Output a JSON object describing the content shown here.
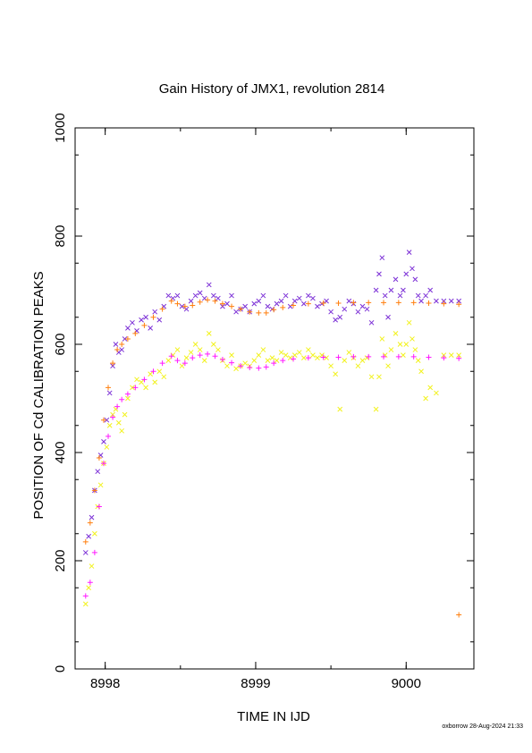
{
  "chart_data": {
    "type": "scatter",
    "title": "Gain History of JMX1, revolution 2814",
    "xlabel": "TIME IN IJD",
    "ylabel": "POSITION OF Cd CALIBRATION PEAKS",
    "xlim": [
      8997.8,
      9000.45
    ],
    "ylim": [
      0,
      1000
    ],
    "xticks": [
      8998,
      8999,
      9000
    ],
    "yticks": [
      0,
      200,
      400,
      600,
      800,
      1000
    ],
    "grid": false,
    "series": [
      {
        "marker": "x",
        "color": "#7b2fd6",
        "x": [
          8997.87,
          8997.89,
          8997.91,
          8997.93,
          8997.95,
          8997.97,
          8997.99,
          8998.01,
          8998.03,
          8998.05,
          8998.07,
          8998.09,
          8998.11,
          8998.13,
          8998.15,
          8998.18,
          8998.21,
          8998.24,
          8998.27,
          8998.3,
          8998.33,
          8998.36,
          8998.39,
          8998.42,
          8998.45,
          8998.48,
          8998.51,
          8998.54,
          8998.57,
          8998.6,
          8998.63,
          8998.66,
          8998.69,
          8998.72,
          8998.75,
          8998.78,
          8998.81,
          8998.84,
          8998.87,
          8998.9,
          8998.93,
          8998.96,
          8998.99,
          8999.02,
          8999.05,
          8999.08,
          8999.11,
          8999.14,
          8999.17,
          8999.2,
          8999.23,
          8999.26,
          8999.29,
          8999.32,
          8999.35,
          8999.38,
          8999.41,
          8999.44,
          8999.47,
          8999.5,
          8999.53,
          8999.56,
          8999.59,
          8999.62,
          8999.65,
          8999.68,
          8999.71,
          8999.74,
          8999.77,
          8999.8,
          8999.82,
          8999.84,
          8999.86,
          8999.88,
          8999.9,
          8999.93,
          8999.96,
          8999.98,
          9000.0,
          9000.02,
          9000.04,
          9000.06,
          9000.08,
          9000.1,
          9000.13,
          9000.16,
          9000.2,
          9000.25,
          9000.3,
          9000.35
        ],
        "y": [
          215,
          245,
          280,
          330,
          365,
          395,
          420,
          460,
          510,
          560,
          600,
          585,
          590,
          610,
          630,
          640,
          625,
          645,
          650,
          630,
          660,
          645,
          670,
          690,
          685,
          690,
          670,
          665,
          680,
          690,
          695,
          685,
          710,
          690,
          685,
          670,
          675,
          690,
          660,
          665,
          670,
          660,
          675,
          680,
          690,
          670,
          665,
          675,
          680,
          690,
          670,
          680,
          685,
          675,
          690,
          685,
          670,
          675,
          680,
          660,
          645,
          650,
          665,
          680,
          675,
          660,
          670,
          665,
          640,
          700,
          730,
          760,
          690,
          650,
          700,
          720,
          690,
          700,
          730,
          770,
          740,
          720,
          690,
          680,
          690,
          700,
          680,
          680,
          680,
          680
        ]
      },
      {
        "marker": "x",
        "color": "#f2f21d",
        "x": [
          8997.87,
          8997.89,
          8997.91,
          8997.93,
          8997.95,
          8997.97,
          8997.99,
          8998.01,
          8998.03,
          8998.05,
          8998.07,
          8998.09,
          8998.11,
          8998.13,
          8998.15,
          8998.18,
          8998.21,
          8998.24,
          8998.27,
          8998.3,
          8998.33,
          8998.36,
          8998.39,
          8998.42,
          8998.45,
          8998.48,
          8998.51,
          8998.54,
          8998.57,
          8998.6,
          8998.63,
          8998.66,
          8998.69,
          8998.72,
          8998.75,
          8998.78,
          8998.81,
          8998.84,
          8998.87,
          8998.9,
          8998.93,
          8998.96,
          8998.99,
          8999.02,
          8999.05,
          8999.08,
          8999.11,
          8999.14,
          8999.17,
          8999.2,
          8999.23,
          8999.26,
          8999.29,
          8999.32,
          8999.35,
          8999.38,
          8999.41,
          8999.44,
          8999.47,
          8999.5,
          8999.53,
          8999.56,
          8999.59,
          8999.62,
          8999.65,
          8999.68,
          8999.71,
          8999.74,
          8999.77,
          8999.8,
          8999.82,
          8999.84,
          8999.86,
          8999.88,
          8999.9,
          8999.93,
          8999.96,
          8999.98,
          9000.0,
          9000.02,
          9000.04,
          9000.06,
          9000.08,
          9000.1,
          9000.13,
          9000.16,
          9000.2,
          9000.25,
          9000.3,
          9000.35
        ],
        "y": [
          120,
          150,
          190,
          250,
          300,
          340,
          380,
          410,
          450,
          470,
          480,
          455,
          440,
          470,
          500,
          520,
          535,
          530,
          520,
          545,
          530,
          550,
          540,
          570,
          580,
          590,
          560,
          575,
          585,
          600,
          590,
          570,
          620,
          600,
          590,
          570,
          560,
          580,
          555,
          560,
          565,
          560,
          570,
          580,
          590,
          570,
          575,
          570,
          585,
          580,
          575,
          580,
          585,
          575,
          590,
          580,
          575,
          580,
          575,
          560,
          545,
          480,
          570,
          585,
          575,
          560,
          570,
          575,
          540,
          480,
          540,
          610,
          580,
          560,
          590,
          620,
          600,
          580,
          600,
          640,
          610,
          590,
          570,
          550,
          500,
          520,
          510,
          580,
          580,
          580
        ]
      },
      {
        "marker": "+",
        "color": "#ff7f0e",
        "x": [
          8997.87,
          8997.9,
          8997.93,
          8997.96,
          8997.99,
          8998.02,
          8998.05,
          8998.08,
          8998.11,
          8998.15,
          8998.2,
          8998.26,
          8998.32,
          8998.38,
          8998.44,
          8998.48,
          8998.53,
          8998.58,
          8998.63,
          8998.68,
          8998.73,
          8998.78,
          8998.84,
          8998.9,
          8998.96,
          8999.02,
          8999.07,
          8999.12,
          8999.18,
          8999.25,
          8999.35,
          8999.45,
          8999.55,
          8999.65,
          8999.75,
          8999.85,
          8999.95,
          9000.05,
          9000.15,
          9000.25,
          9000.35
        ],
        "y": [
          235,
          270,
          330,
          390,
          460,
          520,
          565,
          590,
          600,
          610,
          620,
          635,
          650,
          665,
          680,
          675,
          670,
          672,
          678,
          682,
          680,
          675,
          670,
          665,
          660,
          658,
          658,
          664,
          668,
          672,
          675,
          676,
          676,
          677,
          677,
          677,
          677,
          677,
          676,
          675,
          674
        ]
      },
      {
        "marker": "+",
        "color": "#ff1aff",
        "x": [
          8997.87,
          8997.9,
          8997.93,
          8997.96,
          8997.99,
          8998.02,
          8998.05,
          8998.08,
          8998.11,
          8998.15,
          8998.2,
          8998.26,
          8998.32,
          8998.38,
          8998.44,
          8998.48,
          8998.53,
          8998.58,
          8998.63,
          8998.68,
          8998.73,
          8998.78,
          8998.84,
          8998.9,
          8998.96,
          8999.02,
          8999.07,
          8999.12,
          8999.18,
          8999.25,
          8999.35,
          8999.45,
          8999.55,
          8999.65,
          8999.75,
          8999.85,
          8999.95,
          9000.05,
          9000.15,
          9000.25,
          9000.35
        ],
        "y": [
          135,
          160,
          215,
          300,
          380,
          430,
          465,
          485,
          498,
          508,
          520,
          535,
          550,
          565,
          578,
          570,
          565,
          575,
          580,
          582,
          578,
          572,
          566,
          560,
          557,
          556,
          558,
          565,
          570,
          573,
          575,
          576,
          576,
          577,
          577,
          577,
          577,
          577,
          576,
          575,
          574
        ]
      },
      {
        "marker": "+",
        "color": "#ff7f0e",
        "x": [
          9000.35
        ],
        "y": [
          100
        ]
      }
    ]
  },
  "footer": "oxborrow 28-Aug-2024 21:33"
}
